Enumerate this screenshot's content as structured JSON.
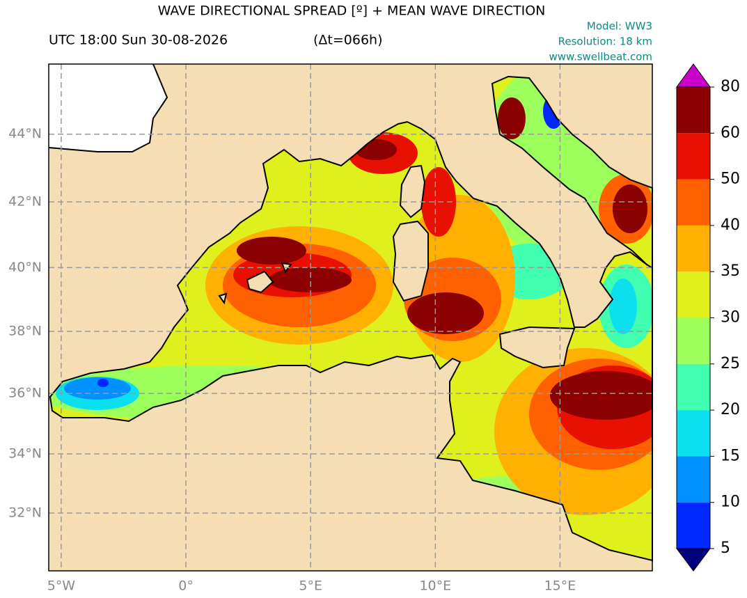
{
  "header": {
    "title": "WAVE DIRECTIONAL SPREAD [º] + MEAN WAVE DIRECTION",
    "time": "UTC 18:00 Sun 30-08-2026",
    "lead": "(Δt=066h)",
    "model": "Model: WW3",
    "resolution": "Resolution: 18 km",
    "website": "www.swellbeat.com"
  },
  "map": {
    "lon_range": [
      -5.5,
      18.7
    ],
    "lat_range": [
      30.0,
      46.0
    ],
    "lon_ticks": [
      {
        "value": -5,
        "label": "5°W"
      },
      {
        "value": 0,
        "label": "0°"
      },
      {
        "value": 5,
        "label": "5°E"
      },
      {
        "value": 10,
        "label": "10°E"
      },
      {
        "value": 15,
        "label": "15°E"
      }
    ],
    "lat_ticks": [
      {
        "value": 32,
        "label": "32°N"
      },
      {
        "value": 34,
        "label": "34°N"
      },
      {
        "value": 36,
        "label": "36°N"
      },
      {
        "value": 38,
        "label": "38°N"
      },
      {
        "value": 40,
        "label": "40°N"
      },
      {
        "value": 42,
        "label": "42°N"
      },
      {
        "value": 44,
        "label": "44°N"
      }
    ],
    "grid": true
  },
  "colorbar": {
    "levels": [
      5,
      10,
      15,
      20,
      25,
      30,
      35,
      40,
      50,
      60,
      80
    ],
    "colors": [
      "#0028ff",
      "#0090ff",
      "#0ce0f0",
      "#40ffb0",
      "#9cff5c",
      "#e0f01c",
      "#ffb000",
      "#ff6000",
      "#e81000",
      "#8b0000"
    ],
    "under_color": "#00007f",
    "over_color": "#cc00cc"
  }
}
